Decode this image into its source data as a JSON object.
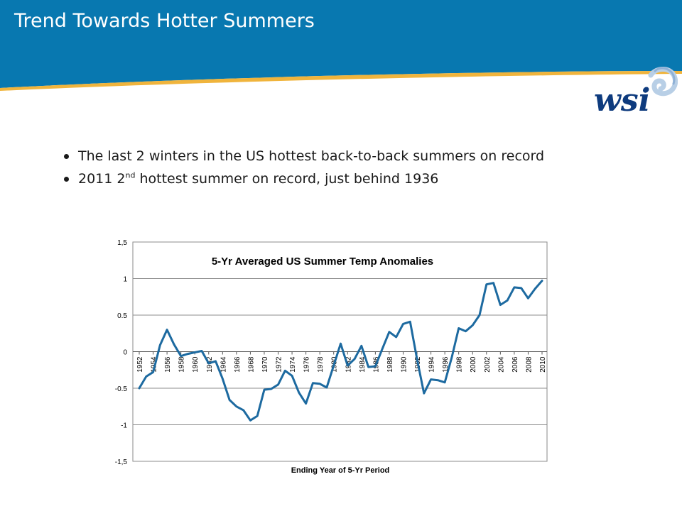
{
  "slide": {
    "title": "Trend Towards Hotter Summers",
    "colors": {
      "banner": "#0878b0",
      "accent": "#f0b43c",
      "logo_text": "#0e3b7e",
      "line": "#1d6aa0"
    }
  },
  "logo": {
    "text": "wsi",
    "icon": "wsi-swirl-icon"
  },
  "bullets": [
    {
      "text": "The last 2 winters in the US hottest back-to-back summers on record"
    },
    {
      "pre": "2011 2",
      "sup": "nd",
      "post": " hottest summer on record, just behind 1936"
    }
  ],
  "chart_data": {
    "type": "line",
    "title": "5-Yr Averaged US Summer Temp Anomalies",
    "xlabel": "Ending Year of 5-Yr Period",
    "ylabel": "",
    "ylim": [
      -1.5,
      1.5
    ],
    "y_ticks": [
      1.5,
      1,
      0.5,
      0,
      -0.5,
      -1,
      -1.5
    ],
    "y_tick_labels": [
      "1,5",
      "1",
      "0.5",
      "0",
      "-0.5",
      "-1",
      "-1,5"
    ],
    "x_tick_labels": [
      "1952",
      "1954",
      "1956",
      "1958",
      "1960",
      "1962",
      "1964",
      "1966",
      "1968",
      "1970",
      "1972",
      "1974",
      "1976",
      "1978",
      "1980",
      "1982",
      "1984",
      "1986",
      "1988",
      "1990",
      "1992",
      "1994",
      "1996",
      "1998",
      "2000",
      "2002",
      "2004",
      "2006",
      "2008",
      "2010"
    ],
    "grid": "horizontal",
    "legend": "none",
    "series": [
      {
        "x": [
          1952,
          1953,
          1954,
          1955,
          1956,
          1957,
          1958,
          1959,
          1960,
          1961,
          1962,
          1963,
          1964,
          1965,
          1966,
          1967,
          1968,
          1969,
          1970,
          1971,
          1972,
          1973,
          1974,
          1975,
          1976,
          1977,
          1978,
          1979,
          1980,
          1981,
          1982,
          1983,
          1984,
          1985,
          1986,
          1987,
          1988,
          1989,
          1990,
          1991,
          1992,
          1993,
          1994,
          1995,
          1996,
          1997,
          1998,
          1999,
          2000,
          2001,
          2002,
          2003,
          2004,
          2005,
          2006,
          2007,
          2008,
          2009,
          2010
        ],
        "values": [
          -0.5,
          -0.34,
          -0.28,
          0.09,
          0.3,
          0.1,
          -0.06,
          -0.03,
          -0.01,
          0.01,
          -0.16,
          -0.13,
          -0.37,
          -0.66,
          -0.75,
          -0.8,
          -0.94,
          -0.88,
          -0.52,
          -0.51,
          -0.45,
          -0.26,
          -0.33,
          -0.56,
          -0.71,
          -0.43,
          -0.44,
          -0.49,
          -0.19,
          0.11,
          -0.19,
          -0.1,
          0.08,
          -0.21,
          -0.2,
          0.04,
          0.27,
          0.2,
          0.38,
          0.41,
          -0.1,
          -0.57,
          -0.38,
          -0.39,
          -0.42,
          -0.08,
          0.32,
          0.28,
          0.36,
          0.5,
          0.92,
          0.94,
          0.64,
          0.7,
          0.88,
          0.87,
          0.73,
          0.86,
          0.97
        ]
      }
    ]
  }
}
